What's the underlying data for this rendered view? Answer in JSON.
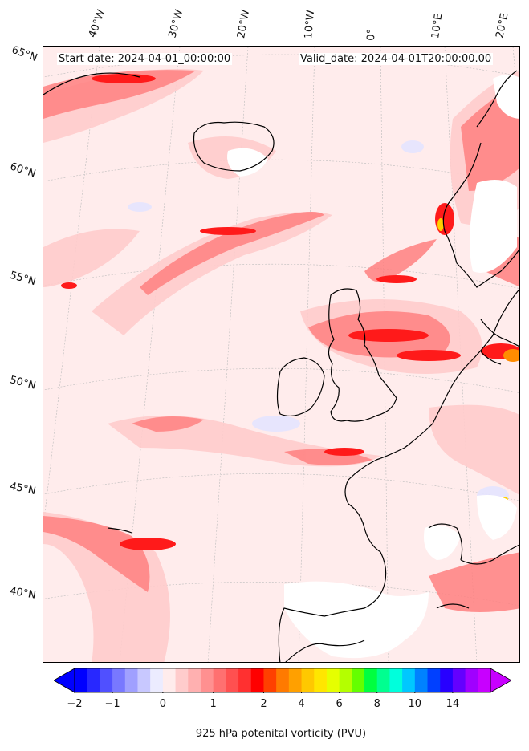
{
  "header": {
    "start_date": "Start date: 2024-04-01_00:00:00",
    "valid_date": "Valid_date: 2024-04-01T20:00:00.00"
  },
  "longitude_labels": [
    "40°W",
    "30°W",
    "20°W",
    "10°W",
    "0°",
    "10°E",
    "20°E"
  ],
  "latitude_labels": [
    "65°N",
    "60°N",
    "55°N",
    "50°N",
    "45°N",
    "40°N"
  ],
  "colorbar": {
    "label": "925 hPa potenital vorticity (PVU)",
    "ticks": [
      "−2",
      "−1",
      "0",
      "1",
      "2",
      "4",
      "6",
      "8",
      "10",
      "14"
    ],
    "colors": [
      "#0000ff",
      "#2828ff",
      "#5050ff",
      "#7878ff",
      "#a0a0ff",
      "#c8c8ff",
      "#ececff",
      "#ffecec",
      "#ffcccc",
      "#ffb0b0",
      "#ff9090",
      "#ff7070",
      "#ff5050",
      "#ff3030",
      "#ff0000",
      "#ff4000",
      "#ff7a00",
      "#ffa000",
      "#ffc800",
      "#ffe600",
      "#e6ff00",
      "#b4ff00",
      "#64ff00",
      "#00ff40",
      "#00ff90",
      "#00ffdc",
      "#00c8ff",
      "#0082ff",
      "#0040ff",
      "#2800ff",
      "#6400ff",
      "#a000ff",
      "#c800ff"
    ]
  }
}
